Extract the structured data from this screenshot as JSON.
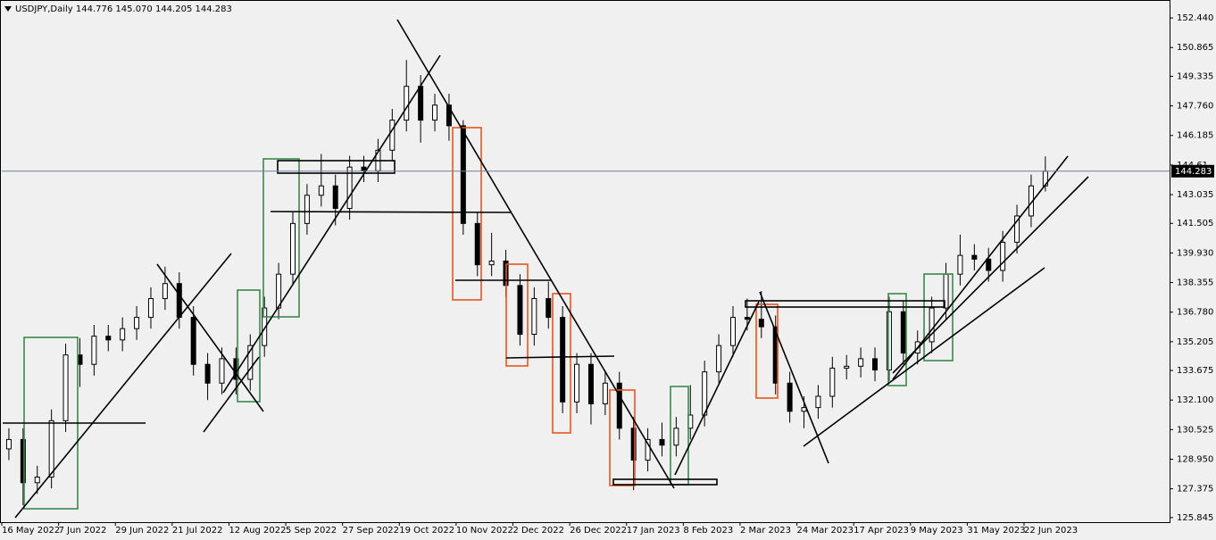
{
  "chart_data": {
    "type": "candlestick",
    "title": "USDJPY,Daily  144.776 145.070 144.205 144.283",
    "up_color": "#ffffff",
    "down_color": "#000000",
    "last_price": 144.283,
    "last_price_color": "#6b8294",
    "xlim": [
      0,
      329
    ],
    "ylim": [
      125.6,
      153.3
    ],
    "xticks": [
      {
        "value": 0,
        "label": "16 May 2022"
      },
      {
        "value": 16,
        "label": "7 Jun 2022"
      },
      {
        "value": 32,
        "label": "29 Jun 2022"
      },
      {
        "value": 48,
        "label": "21 Jul 2022"
      },
      {
        "value": 64,
        "label": "12 Aug 2022"
      },
      {
        "value": 80,
        "label": "5 Sep 2022"
      },
      {
        "value": 96,
        "label": "27 Sep 2022"
      },
      {
        "value": 112,
        "label": "19 Oct 2022"
      },
      {
        "value": 128,
        "label": "10 Nov 2022"
      },
      {
        "value": 144,
        "label": "2 Dec 2022"
      },
      {
        "value": 160,
        "label": "26 Dec 2022"
      },
      {
        "value": 176,
        "label": "17 Jan 2023"
      },
      {
        "value": 192,
        "label": "8 Feb 2023"
      },
      {
        "value": 208,
        "label": "2 Mar 2023"
      },
      {
        "value": 224,
        "label": "24 Mar 2023"
      },
      {
        "value": 240,
        "label": "17 Apr 2023"
      },
      {
        "value": 256,
        "label": "9 May 2023"
      },
      {
        "value": 272,
        "label": "31 May 2023"
      },
      {
        "value": 288,
        "label": "22 Jun 2023"
      }
    ],
    "yticks": [
      {
        "value": 152.44,
        "label": "152.440"
      },
      150.865,
      149.335,
      {
        "value": 147.76,
        "label": "147.760"
      },
      146.185,
      144.61,
      143.035,
      141.505,
      {
        "value": 139.93,
        "label": "139.930"
      },
      138.355,
      {
        "value": 136.78,
        "label": "136.780"
      },
      135.205,
      133.675,
      {
        "value": 132.1,
        "label": "132.100"
      },
      130.525,
      {
        "value": 128.95,
        "label": "128.950"
      },
      127.375,
      125.845
    ],
    "x": [
      2,
      6,
      10,
      14,
      18,
      22,
      26,
      30,
      34,
      38,
      42,
      46,
      50,
      54,
      58,
      62,
      66,
      70,
      74,
      78,
      82,
      86,
      90,
      94,
      98,
      102,
      106,
      110,
      114,
      118,
      122,
      126,
      130,
      134,
      138,
      142,
      146,
      150,
      154,
      158,
      162,
      166,
      170,
      174,
      178,
      182,
      186,
      190,
      194,
      198,
      202,
      206,
      210,
      214,
      218,
      222,
      226,
      230,
      234,
      238,
      242,
      246,
      250,
      254,
      258,
      262,
      266,
      270,
      274,
      278,
      282,
      286,
      290,
      294
    ],
    "open": [
      129.5,
      130.0,
      127.7,
      128.0,
      131.0,
      134.5,
      134.0,
      135.5,
      135.3,
      135.9,
      136.5,
      137.5,
      138.3,
      136.5,
      134.0,
      133.0,
      134.3,
      133.2,
      135.0,
      137.0,
      138.8,
      141.5,
      143.0,
      143.5,
      142.3,
      144.5,
      144.3,
      145.4,
      147.0,
      148.8,
      147.0,
      147.8,
      146.7,
      141.5,
      139.3,
      139.5,
      138.2,
      135.6,
      137.5,
      136.5,
      132.0,
      134.0,
      131.9,
      133.0,
      130.6,
      128.9,
      130.0,
      129.7,
      130.6,
      131.3,
      133.6,
      135.0,
      136.5,
      136.4,
      136.0,
      133.0,
      131.5,
      131.7,
      132.3,
      133.8,
      133.9,
      134.3,
      133.7,
      136.8,
      134.6,
      135.2,
      137.0,
      138.8,
      139.8,
      139.6,
      139.0,
      140.5,
      141.9,
      143.5
    ],
    "high": [
      130.6,
      130.6,
      128.6,
      131.6,
      135.1,
      135.4,
      136.1,
      136.1,
      136.5,
      137.1,
      138.1,
      139.2,
      138.9,
      137.1,
      134.6,
      134.9,
      134.9,
      135.6,
      137.6,
      139.4,
      142.1,
      143.6,
      145.2,
      144.1,
      145.1,
      145.1,
      146.0,
      147.6,
      150.2,
      149.4,
      148.4,
      148.4,
      147.0,
      142.1,
      141.0,
      140.1,
      138.8,
      138.1,
      138.4,
      137.1,
      134.6,
      134.6,
      133.6,
      133.6,
      131.2,
      130.6,
      130.9,
      131.2,
      132.9,
      134.2,
      135.6,
      137.1,
      137.5,
      137.9,
      136.6,
      133.6,
      132.3,
      132.9,
      134.4,
      134.5,
      134.9,
      134.9,
      137.6,
      137.4,
      135.8,
      137.6,
      139.4,
      140.9,
      140.4,
      140.2,
      141.1,
      142.5,
      144.1,
      145.07
    ],
    "low": [
      128.9,
      126.5,
      127.1,
      127.4,
      130.4,
      132.8,
      133.4,
      134.7,
      134.7,
      135.3,
      135.9,
      136.9,
      135.9,
      133.4,
      132.1,
      132.4,
      132.4,
      132.6,
      134.4,
      136.4,
      138.2,
      140.9,
      142.4,
      141.4,
      141.7,
      143.7,
      143.7,
      144.8,
      146.4,
      145.8,
      146.4,
      145.9,
      140.9,
      138.7,
      138.7,
      137.6,
      135.0,
      135.0,
      135.9,
      131.4,
      131.4,
      130.8,
      131.3,
      130.0,
      127.3,
      128.3,
      129.1,
      129.1,
      130.0,
      130.7,
      133.0,
      134.4,
      135.8,
      135.4,
      132.4,
      130.9,
      130.6,
      131.1,
      131.7,
      133.2,
      133.3,
      133.1,
      133.1,
      134.0,
      134.0,
      134.6,
      136.4,
      138.2,
      139.0,
      138.4,
      138.4,
      139.9,
      141.3,
      143.2
    ],
    "close": [
      130.0,
      127.7,
      128.0,
      131.0,
      134.5,
      134.0,
      135.5,
      135.3,
      135.9,
      136.5,
      137.5,
      138.3,
      136.5,
      134.0,
      133.0,
      134.3,
      133.2,
      135.0,
      137.0,
      138.8,
      141.5,
      143.0,
      143.5,
      142.3,
      144.5,
      144.3,
      145.4,
      147.0,
      148.8,
      147.0,
      147.8,
      146.7,
      141.5,
      139.3,
      139.5,
      138.2,
      135.6,
      137.5,
      136.5,
      132.0,
      134.0,
      131.9,
      133.0,
      130.6,
      128.9,
      130.0,
      129.7,
      130.6,
      131.3,
      133.6,
      135.0,
      136.5,
      136.4,
      136.0,
      133.0,
      131.5,
      131.7,
      132.3,
      133.8,
      133.9,
      134.3,
      133.7,
      136.8,
      134.6,
      135.2,
      137.0,
      138.8,
      139.8,
      139.6,
      139.0,
      140.5,
      141.9,
      143.5,
      144.283
    ]
  }
}
